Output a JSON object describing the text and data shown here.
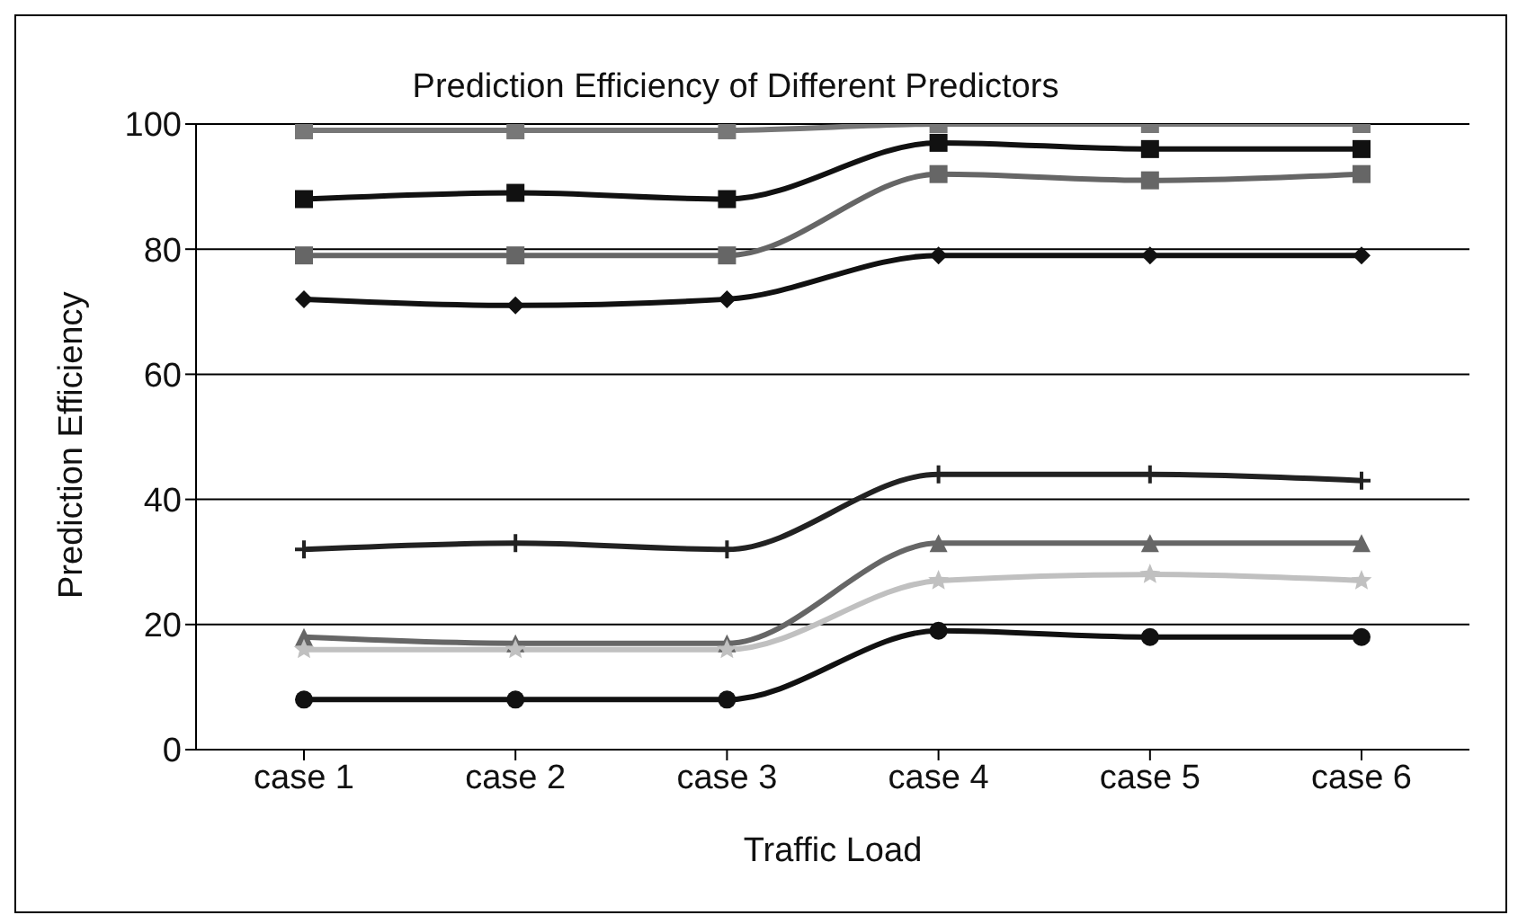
{
  "chart_data": {
    "type": "line",
    "title": "Prediction Efficiency of Different Predictors",
    "xlabel": "Traffic Load",
    "ylabel": "Prediction Efficiency",
    "categories": [
      "case 1",
      "case 2",
      "case 3",
      "case 4",
      "case 5",
      "case 6"
    ],
    "ylim": [
      0,
      100
    ],
    "yticks": [
      0,
      20,
      40,
      60,
      80,
      100
    ],
    "grid": "y",
    "legend": false,
    "series": [
      {
        "color": "#777777",
        "marker": "square",
        "values": [
          99,
          99,
          99,
          100,
          100,
          100
        ]
      },
      {
        "color": "#111111",
        "marker": "square",
        "values": [
          88,
          89,
          88,
          97,
          96,
          96
        ]
      },
      {
        "color": "#666666",
        "marker": "square",
        "values": [
          79,
          79,
          79,
          92,
          91,
          92
        ]
      },
      {
        "color": "#111111",
        "marker": "diamond",
        "values": [
          72,
          71,
          72,
          79,
          79,
          79
        ]
      },
      {
        "color": "#222222",
        "marker": "cross",
        "values": [
          32,
          33,
          32,
          44,
          44,
          43
        ]
      },
      {
        "color": "#666666",
        "marker": "triangle",
        "values": [
          18,
          17,
          17,
          33,
          33,
          33
        ]
      },
      {
        "color": "#c0c0c0",
        "marker": "star",
        "values": [
          16,
          16,
          16,
          27,
          28,
          27
        ]
      },
      {
        "color": "#111111",
        "marker": "circle",
        "values": [
          8,
          8,
          8,
          19,
          18,
          18
        ]
      }
    ]
  }
}
